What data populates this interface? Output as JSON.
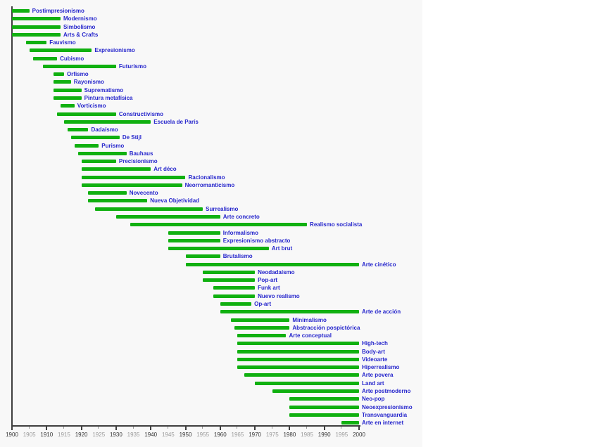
{
  "chart_data": {
    "type": "bar",
    "subtype": "gantt-timeline",
    "title": "",
    "xlabel": "",
    "ylabel": "",
    "legend": "none",
    "grid": false,
    "x_axis": {
      "min": 1900,
      "max": 2000,
      "label_interval": 5,
      "major_tick_interval": 10,
      "tick_labels": [
        "1900",
        "1905",
        "1910",
        "1915",
        "1920",
        "1925",
        "1930",
        "1935",
        "1940",
        "1945",
        "1950",
        "1955",
        "1960",
        "1965",
        "1970",
        "1975",
        "1980",
        "1985",
        "1990",
        "1995",
        "2000"
      ]
    },
    "movements": [
      {
        "label": "Postimpresionismo",
        "start": 1900,
        "end": 1905
      },
      {
        "label": "Modernismo",
        "start": 1900,
        "end": 1914
      },
      {
        "label": "Simbolismo",
        "start": 1900,
        "end": 1914
      },
      {
        "label": "Arts & Crafts",
        "start": 1900,
        "end": 1914
      },
      {
        "label": "Fauvismo",
        "start": 1904,
        "end": 1910
      },
      {
        "label": "Expresionismo",
        "start": 1905,
        "end": 1923
      },
      {
        "label": "Cubismo",
        "start": 1906,
        "end": 1913
      },
      {
        "label": "Futurismo",
        "start": 1909,
        "end": 1930
      },
      {
        "label": "Orfismo",
        "start": 1912,
        "end": 1915
      },
      {
        "label": "Rayonismo",
        "start": 1912,
        "end": 1917
      },
      {
        "label": "Suprematismo",
        "start": 1912,
        "end": 1920
      },
      {
        "label": "Pintura metafísica",
        "start": 1912,
        "end": 1920
      },
      {
        "label": "Vorticismo",
        "start": 1914,
        "end": 1918
      },
      {
        "label": "Constructivismo",
        "start": 1913,
        "end": 1930
      },
      {
        "label": "Escuela de París",
        "start": 1915,
        "end": 1940
      },
      {
        "label": "Dadaísmo",
        "start": 1916,
        "end": 1922
      },
      {
        "label": "De Stijl",
        "start": 1917,
        "end": 1931
      },
      {
        "label": "Purismo",
        "start": 1918,
        "end": 1925
      },
      {
        "label": "Bauhaus",
        "start": 1919,
        "end": 1933
      },
      {
        "label": "Precisionismo",
        "start": 1920,
        "end": 1930
      },
      {
        "label": "Art déco",
        "start": 1920,
        "end": 1940
      },
      {
        "label": "Racionalismo",
        "start": 1920,
        "end": 1950
      },
      {
        "label": "Neorromanticismo",
        "start": 1920,
        "end": 1949
      },
      {
        "label": "Novecento",
        "start": 1922,
        "end": 1933
      },
      {
        "label": "Nueva Objetividad",
        "start": 1922,
        "end": 1939
      },
      {
        "label": "Surrealismo",
        "start": 1924,
        "end": 1955
      },
      {
        "label": "Arte concreto",
        "start": 1930,
        "end": 1960
      },
      {
        "label": "Realismo socialista",
        "start": 1934,
        "end": 1985
      },
      {
        "label": "Informalismo",
        "start": 1945,
        "end": 1960
      },
      {
        "label": "Expresionismo abstracto",
        "start": 1945,
        "end": 1960
      },
      {
        "label": "Art brut",
        "start": 1945,
        "end": 1974
      },
      {
        "label": "Brutalismo",
        "start": 1950,
        "end": 1960
      },
      {
        "label": "Arte cinético",
        "start": 1950,
        "end": 2000
      },
      {
        "label": "Neodadaísmo",
        "start": 1955,
        "end": 1970
      },
      {
        "label": "Pop-art",
        "start": 1955,
        "end": 1970
      },
      {
        "label": "Funk art",
        "start": 1958,
        "end": 1970
      },
      {
        "label": "Nuevo realismo",
        "start": 1958,
        "end": 1970
      },
      {
        "label": "Op-art",
        "start": 1960,
        "end": 1969
      },
      {
        "label": "Arte de acción",
        "start": 1960,
        "end": 2000
      },
      {
        "label": "Minimalismo",
        "start": 1963,
        "end": 1980
      },
      {
        "label": "Abstracción pospictórica",
        "start": 1964,
        "end": 1980
      },
      {
        "label": "Arte conceptual",
        "start": 1965,
        "end": 1979
      },
      {
        "label": "High-tech",
        "start": 1965,
        "end": 2000
      },
      {
        "label": "Body-art",
        "start": 1965,
        "end": 2000
      },
      {
        "label": "Videoarte",
        "start": 1965,
        "end": 2000
      },
      {
        "label": "Hiperrealismo",
        "start": 1965,
        "end": 2000
      },
      {
        "label": "Arte povera",
        "start": 1967,
        "end": 2000
      },
      {
        "label": "Land art",
        "start": 1970,
        "end": 2000
      },
      {
        "label": "Arte postmoderno",
        "start": 1975,
        "end": 2000
      },
      {
        "label": "Neo-pop",
        "start": 1980,
        "end": 2000
      },
      {
        "label": "Neoexpresionismo",
        "start": 1980,
        "end": 2000
      },
      {
        "label": "Transvanguardia",
        "start": 1980,
        "end": 2000
      },
      {
        "label": "Arte en internet",
        "start": 1995,
        "end": 2000
      }
    ],
    "colors": {
      "bar": "#10b010",
      "movement_label": "#2626cc",
      "axis": "#3f3f3f",
      "tick_label_major": "#333333",
      "tick_label_minor": "#999999",
      "canvas_background": "#f8f8f8",
      "page_background": "#ffffff"
    }
  }
}
